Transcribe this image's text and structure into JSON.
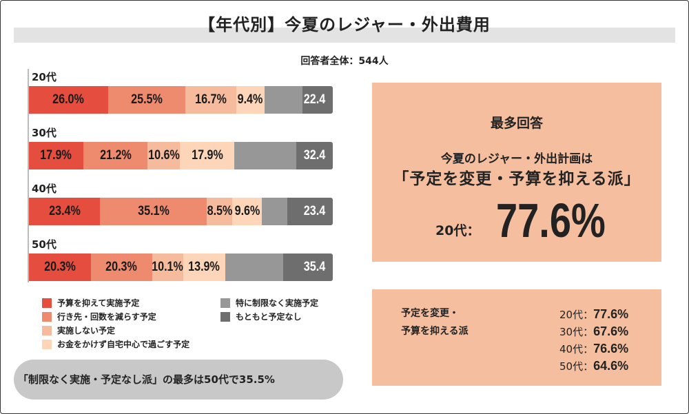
{
  "title": "【年代別】今夏のレジャー・外出費用",
  "respondents": "回答者全体：544人",
  "chart_data": {
    "type": "stacked-bar-horizontal",
    "title": "【年代別】今夏のレジャー・外出費用",
    "unit": "%",
    "categories": [
      "20代",
      "30代",
      "40代",
      "50代"
    ],
    "series": [
      {
        "name": "予算を抑えて実施予定",
        "color": "#e54e3e",
        "values": [
          26.0,
          17.9,
          23.4,
          20.3
        ]
      },
      {
        "name": "行き先・回数を減らす予定",
        "color": "#ee8a6e",
        "values": [
          25.5,
          21.2,
          35.1,
          20.3
        ]
      },
      {
        "name": "実施しない予定",
        "color": "#f6bb9d",
        "values": [
          16.7,
          10.6,
          8.5,
          10.1
        ]
      },
      {
        "name": "お金をかけず自宅中心で過ごす予定",
        "color": "#fdd5b8",
        "values": [
          9.4,
          17.9,
          9.6,
          13.9
        ]
      },
      {
        "name": "特に制限なく実施予定",
        "color": "#979797",
        "values": [
          12.5,
          20.3,
          8.4,
          19.1
        ]
      },
      {
        "name": "もともと予定なし",
        "color": "#6e6e6e",
        "values": [
          9.9,
          12.1,
          15.0,
          16.3
        ]
      }
    ],
    "segment_labels": [
      [
        "26.0%",
        "25.5%",
        "16.7%",
        "9.4%",
        "",
        "22.4"
      ],
      [
        "17.9%",
        "21.2%",
        "10.6%",
        "17.9%",
        "",
        "32.4"
      ],
      [
        "23.4%",
        "35.1%",
        "8.5%",
        "9.6%",
        "",
        "23.4"
      ],
      [
        "20.3%",
        "20.3%",
        "10.1%",
        "13.9%",
        "",
        "35.4"
      ]
    ],
    "legend_placement": "bottom"
  },
  "callout": "「制限なく実施・予定なし派」の最多は50代で35.5%",
  "panel1": {
    "heading": "最多回答",
    "sub1": "今夏のレジャー・外出計画は",
    "sub2": "「予定を変更・予算を抑える派」",
    "age": "20代：",
    "value": "77.6%"
  },
  "panel2": {
    "label_line1": "予定を変更・",
    "label_line2": "予算を抑える派",
    "items": [
      {
        "age": "20代：",
        "value": "77.6%"
      },
      {
        "age": "30代：",
        "value": "67.6%"
      },
      {
        "age": "40代：",
        "value": "76.6%"
      },
      {
        "age": "50代：",
        "value": "64.6%"
      }
    ]
  }
}
